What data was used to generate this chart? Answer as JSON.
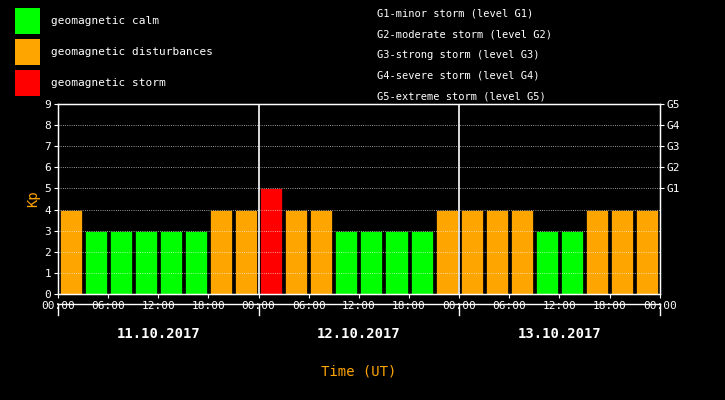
{
  "background_color": "#000000",
  "plot_bg_color": "#000000",
  "bar_data": [
    {
      "time_idx": 0,
      "kp": 4,
      "color": "#FFA500"
    },
    {
      "time_idx": 1,
      "kp": 3,
      "color": "#00FF00"
    },
    {
      "time_idx": 2,
      "kp": 3,
      "color": "#00FF00"
    },
    {
      "time_idx": 3,
      "kp": 3,
      "color": "#00FF00"
    },
    {
      "time_idx": 4,
      "kp": 3,
      "color": "#00FF00"
    },
    {
      "time_idx": 5,
      "kp": 3,
      "color": "#00FF00"
    },
    {
      "time_idx": 6,
      "kp": 4,
      "color": "#FFA500"
    },
    {
      "time_idx": 7,
      "kp": 4,
      "color": "#FFA500"
    },
    {
      "time_idx": 8,
      "kp": 5,
      "color": "#FF0000"
    },
    {
      "time_idx": 9,
      "kp": 4,
      "color": "#FFA500"
    },
    {
      "time_idx": 10,
      "kp": 4,
      "color": "#FFA500"
    },
    {
      "time_idx": 11,
      "kp": 3,
      "color": "#00FF00"
    },
    {
      "time_idx": 12,
      "kp": 3,
      "color": "#00FF00"
    },
    {
      "time_idx": 13,
      "kp": 3,
      "color": "#00FF00"
    },
    {
      "time_idx": 14,
      "kp": 3,
      "color": "#00FF00"
    },
    {
      "time_idx": 15,
      "kp": 4,
      "color": "#FFA500"
    },
    {
      "time_idx": 16,
      "kp": 4,
      "color": "#FFA500"
    },
    {
      "time_idx": 17,
      "kp": 4,
      "color": "#FFA500"
    },
    {
      "time_idx": 18,
      "kp": 4,
      "color": "#FFA500"
    },
    {
      "time_idx": 19,
      "kp": 3,
      "color": "#00FF00"
    },
    {
      "time_idx": 20,
      "kp": 3,
      "color": "#00FF00"
    },
    {
      "time_idx": 21,
      "kp": 4,
      "color": "#FFA500"
    },
    {
      "time_idx": 22,
      "kp": 4,
      "color": "#FFA500"
    },
    {
      "time_idx": 23,
      "kp": 4,
      "color": "#FFA500"
    }
  ],
  "tick_labels": [
    "00:00",
    "06:00",
    "12:00",
    "18:00",
    "00:00",
    "06:00",
    "12:00",
    "18:00",
    "00:00",
    "06:00",
    "12:00",
    "18:00",
    "00:00"
  ],
  "tick_positions": [
    0,
    2,
    4,
    6,
    8,
    10,
    12,
    14,
    16,
    18,
    20,
    22,
    24
  ],
  "day_labels": [
    "11.10.2017",
    "12.10.2017",
    "13.10.2017"
  ],
  "day_centers": [
    4,
    12,
    20
  ],
  "day_dividers": [
    8,
    16
  ],
  "ylabel": "Kp",
  "xlabel": "Time (UT)",
  "ylim": [
    0,
    9
  ],
  "yticks": [
    0,
    1,
    2,
    3,
    4,
    5,
    6,
    7,
    8,
    9
  ],
  "right_labels": [
    "G1",
    "G2",
    "G3",
    "G4",
    "G5"
  ],
  "right_positions": [
    5,
    6,
    7,
    8,
    9
  ],
  "legend_items": [
    {
      "label": "geomagnetic calm",
      "color": "#00FF00"
    },
    {
      "label": "geomagnetic disturbances",
      "color": "#FFA500"
    },
    {
      "label": "geomagnetic storm",
      "color": "#FF0000"
    }
  ],
  "storm_lines": [
    "G1-minor storm (level G1)",
    "G2-moderate storm (level G2)",
    "G3-strong storm (level G3)",
    "G4-severe storm (level G4)",
    "G5-extreme storm (level G5)"
  ],
  "text_color": "#FFFFFF",
  "orange_color": "#FFA500",
  "font_size_tick": 8,
  "font_size_legend": 8,
  "font_size_right": 8,
  "font_size_ylabel": 10,
  "font_size_xlabel": 10,
  "font_size_day": 10,
  "font_size_storm": 7.5,
  "bar_width": 0.88
}
